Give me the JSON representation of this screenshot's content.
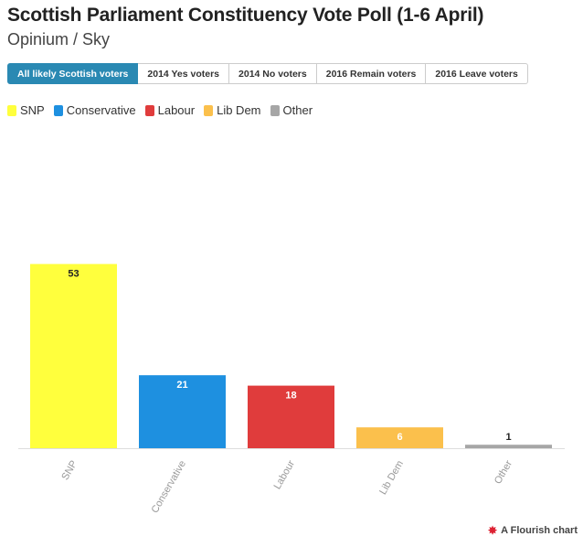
{
  "title": "Scottish Parliament Constituency Vote Poll (1-6 April)",
  "subtitle": "Opinium / Sky",
  "tabs": [
    {
      "label": "All likely Scottish voters",
      "active": true
    },
    {
      "label": "2014 Yes voters",
      "active": false
    },
    {
      "label": "2014 No voters",
      "active": false
    },
    {
      "label": "2016 Remain voters",
      "active": false
    },
    {
      "label": "2016 Leave voters",
      "active": false
    }
  ],
  "legend": [
    {
      "label": "SNP",
      "color": "#ffff3d"
    },
    {
      "label": "Conservative",
      "color": "#1e90e0"
    },
    {
      "label": "Labour",
      "color": "#e03c3c"
    },
    {
      "label": "Lib Dem",
      "color": "#fbc04c"
    },
    {
      "label": "Other",
      "color": "#a6a6a6"
    }
  ],
  "chart_data": {
    "type": "bar",
    "categories": [
      "SNP",
      "Conservative",
      "Labour",
      "Lib Dem",
      "Other"
    ],
    "values": [
      53,
      21,
      18,
      6,
      1
    ],
    "colors": [
      "#ffff3d",
      "#1e90e0",
      "#e03c3c",
      "#fbc04c",
      "#a6a6a6"
    ],
    "title": "Scottish Parliament Constituency Vote Poll (1-6 April)",
    "subtitle": "Opinium / Sky",
    "xlabel": "",
    "ylabel": "",
    "ylim": [
      0,
      100
    ],
    "grid": false,
    "legend_position": "top-left"
  },
  "credit": {
    "icon": "flourish-logo-icon",
    "label": "A Flourish chart"
  }
}
